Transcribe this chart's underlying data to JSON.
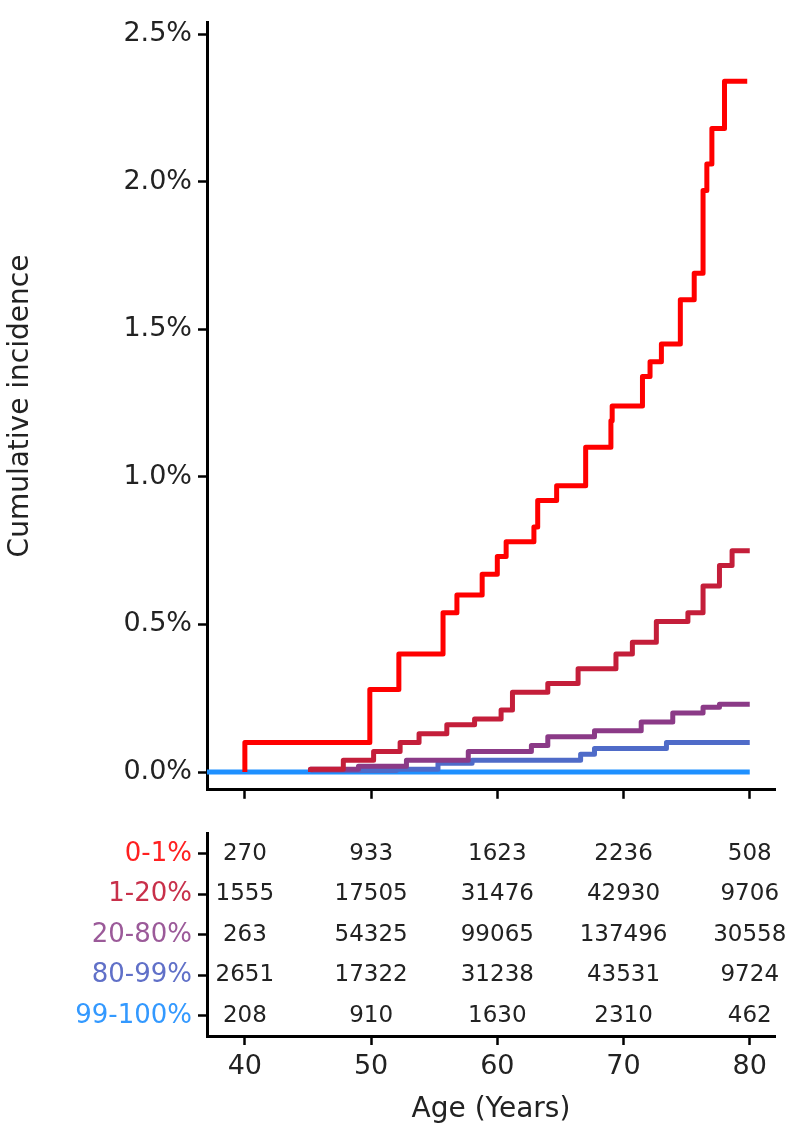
{
  "chart_data": [
    {
      "type": "step",
      "ylabel": "Cumulative incidence",
      "xlim": [
        37,
        82
      ],
      "xticks": [
        {
          "value": 40,
          "label": null
        },
        {
          "value": 50,
          "label": null
        },
        {
          "value": 60,
          "label": null
        },
        {
          "value": 70,
          "label": null
        },
        {
          "value": 80,
          "label": null
        }
      ],
      "ylim": [
        -0.06,
        2.54
      ],
      "yticks": [
        {
          "value": 0,
          "label": "0.0%"
        },
        {
          "value": 0.5,
          "label": "0.5%"
        },
        {
          "value": 1,
          "label": "1.0%"
        },
        {
          "value": 1.5,
          "label": "1.5%"
        },
        {
          "value": 2,
          "label": "2.0%"
        },
        {
          "value": 2.5,
          "label": "2.5%"
        }
      ],
      "tick_labels": "y",
      "marker": "none",
      "series": [
        {
          "color": "#ff0000",
          "x": [
            40,
            49.9,
            52.2,
            55.7,
            56.8,
            58.8,
            60.0,
            60.7,
            62.9,
            63.2,
            64.7,
            67.0,
            69.0,
            69.1,
            71.5,
            72.1,
            73.0,
            74.5,
            75.6,
            76.3,
            76.6,
            77.0,
            78.0,
            79.4,
            79.8
          ],
          "values": [
            0,
            0.1,
            0.28,
            0.4,
            0.54,
            0.6,
            0.67,
            0.73,
            0.78,
            0.83,
            0.92,
            0.97,
            1.1,
            1.19,
            1.24,
            1.34,
            1.39,
            1.45,
            1.6,
            1.69,
            1.97,
            2.06,
            2.18,
            2.34,
            2.34
          ]
        },
        {
          "color": "#c41e3a",
          "x": [
            45.2,
            47.8,
            50.2,
            52.3,
            53.8,
            56.0,
            58.2,
            60.3,
            61.2,
            64.0,
            66.4,
            69.4,
            70.7,
            72.6,
            75.1,
            76.3,
            77.6,
            78.6,
            80.0
          ],
          "values": [
            0,
            0.01,
            0.04,
            0.07,
            0.1,
            0.13,
            0.16,
            0.18,
            0.21,
            0.27,
            0.3,
            0.35,
            0.4,
            0.44,
            0.51,
            0.54,
            0.63,
            0.7,
            0.75
          ]
        },
        {
          "color": "#8b3a87",
          "x": [
            45.2,
            49.0,
            52.8,
            57.7,
            62.7,
            64.0,
            67.7,
            71.4,
            73.9,
            76.3,
            77.6,
            80.0
          ],
          "values": [
            0,
            0.01,
            0.02,
            0.04,
            0.07,
            0.09,
            0.12,
            0.14,
            0.17,
            0.2,
            0.22,
            0.23
          ]
        },
        {
          "color": "#4f6bc8",
          "x": [
            45.2,
            52.0,
            55.3,
            58.0,
            62.7,
            66.6,
            67.7,
            73.4,
            74.6,
            80.0
          ],
          "values": [
            0,
            0.005,
            0.01,
            0.03,
            0.04,
            0.04,
            0.06,
            0.08,
            0.1,
            0.1
          ]
        },
        {
          "color": "#1e90ff",
          "x": [
            37,
            80
          ],
          "values": [
            0,
            0
          ]
        }
      ]
    },
    {
      "type": "heatmap",
      "xlabel": "Age (Years)",
      "x": [
        40,
        50,
        60,
        70,
        80
      ],
      "xlim": [
        37,
        82
      ],
      "xticks": [
        40,
        50,
        60,
        70,
        80
      ],
      "data_labels": true,
      "y_categories": [
        "0-1%",
        "1-20%",
        "20-80%",
        "80-99%",
        "99-100%"
      ],
      "colors": [
        "#ff2020",
        "#c8304a",
        "#9b5a99",
        "#6070c8",
        "#3399ff"
      ],
      "cells": [
        [
          270,
          933,
          1623,
          2236,
          508
        ],
        [
          1555,
          17505,
          31476,
          42930,
          9706
        ],
        [
          263,
          54325,
          99065,
          137496,
          30558
        ],
        [
          2651,
          17322,
          31238,
          43531,
          9724
        ],
        [
          208,
          910,
          1630,
          2310,
          462
        ]
      ]
    }
  ]
}
